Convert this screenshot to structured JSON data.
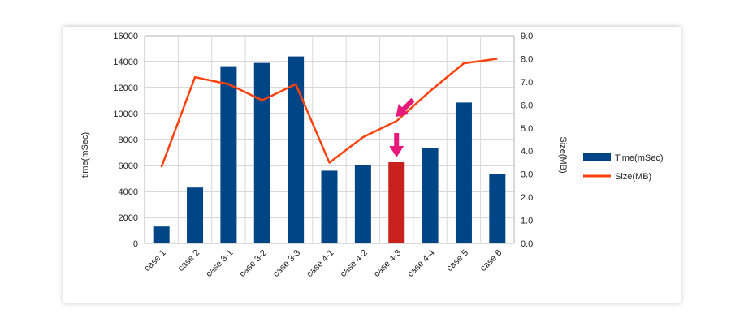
{
  "chart_data": {
    "type": "bar",
    "categories": [
      "case 1",
      "case 2",
      "case 3-1",
      "case 3-2",
      "case 3-3",
      "case 4-1",
      "case 4-2",
      "case 4-3",
      "case 4-4",
      "case 5",
      "case 6"
    ],
    "series": [
      {
        "name": "Time(mSec)",
        "type": "bar",
        "axis": "left",
        "color": "#004586",
        "values": [
          1300,
          4300,
          13650,
          13900,
          14400,
          5600,
          6000,
          6250,
          7350,
          10850,
          5350
        ]
      },
      {
        "name": "Size(MB)",
        "type": "line",
        "axis": "right",
        "color": "#ff420e",
        "values": [
          3.3,
          7.2,
          6.9,
          6.2,
          6.9,
          3.5,
          4.6,
          5.3,
          6.6,
          7.8,
          8.0
        ]
      }
    ],
    "highlight": {
      "category": "case 4-3",
      "bar_color": "#c9211e",
      "arrow_color": "#e8187a"
    },
    "ylabel": "time(mSec)",
    "y2label": "Size(MB)",
    "ylim": [
      0,
      16000
    ],
    "yticks": [
      0,
      2000,
      4000,
      6000,
      8000,
      10000,
      12000,
      14000,
      16000
    ],
    "y2lim": [
      0,
      9
    ],
    "y2ticks": [
      "0.0",
      "1.0",
      "2.0",
      "3.0",
      "4.0",
      "5.0",
      "6.0",
      "7.0",
      "8.0",
      "9.0"
    ],
    "grid": true,
    "legend": "right"
  }
}
